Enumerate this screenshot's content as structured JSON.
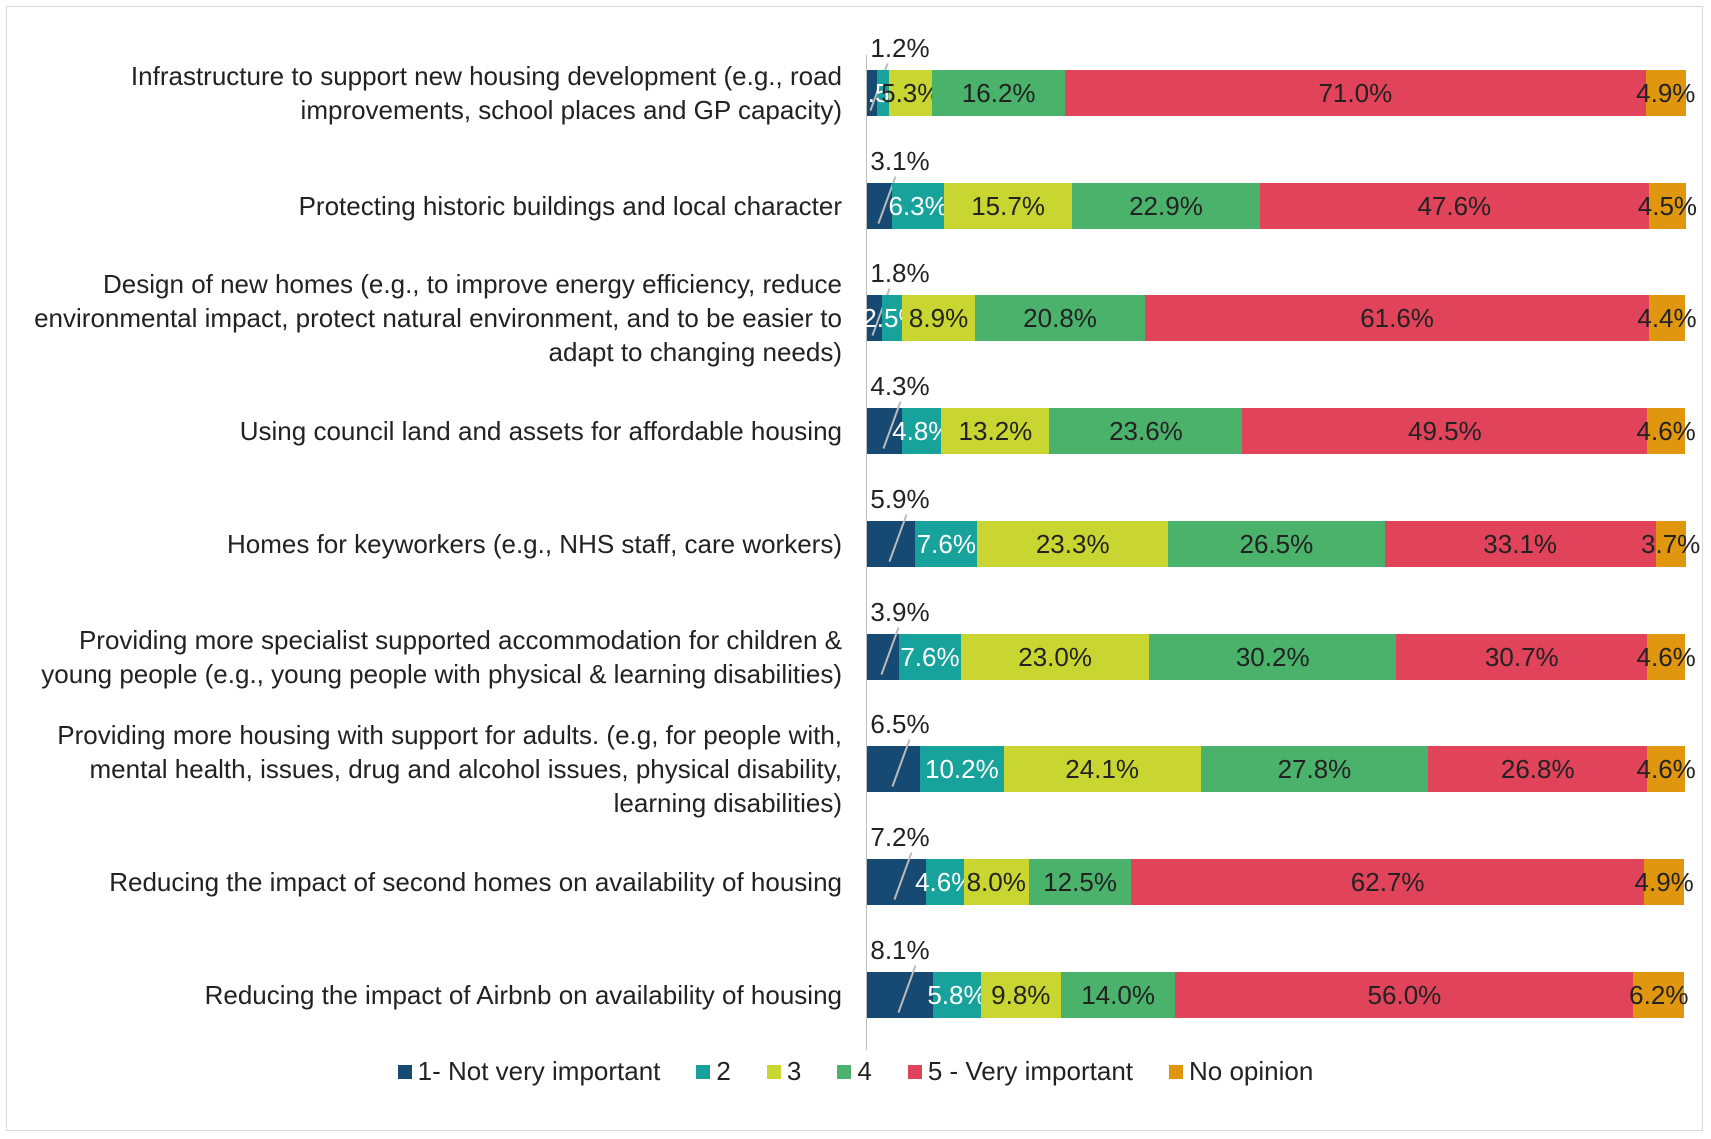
{
  "chart_data": {
    "type": "stacked-barh",
    "categories": [
      "Infrastructure to support new housing development (e.g., road improvements, school places and GP capacity)",
      "Protecting historic buildings and local character",
      "Design of new homes (e.g., to improve energy efficiency, reduce environmental impact, protect natural environment, and to be easier to adapt to changing needs)",
      "Using council land and assets for affordable housing",
      "Homes for keyworkers (e.g., NHS staff, care workers)",
      "Providing more specialist supported accommodation for children & young people (e.g., young people with physical & learning disabilities)",
      "Providing more housing with support for adults. (e.g, for people with, mental health, issues, drug and alcohol issues, physical disability, learning disabilities)",
      "Reducing the impact of second homes on availability of housing",
      "Reducing the impact of Airbnb on availability of housing"
    ],
    "xlim": [
      0,
      100
    ],
    "series": [
      {
        "name": "1- Not very important",
        "color": "#174a72",
        "values": [
          1.2,
          3.1,
          1.8,
          4.3,
          5.9,
          3.9,
          6.5,
          7.2,
          8.1
        ],
        "value_labels": [
          "1.2%",
          "3.1%",
          "1.8%",
          "4.3%",
          "5.9%",
          "3.9%",
          "6.5%",
          "7.2%",
          "8.1%"
        ]
      },
      {
        "name": "2",
        "color": "#17a29b",
        "values": [
          1.5,
          6.3,
          2.5,
          4.8,
          7.6,
          7.6,
          10.2,
          4.6,
          5.8
        ],
        "value_labels": [
          "1.5%",
          "6.3%",
          "2.5%",
          "4.8%",
          "7.6%",
          "7.6%",
          "10.2%",
          "4.6%",
          "5.8%"
        ]
      },
      {
        "name": "3",
        "color": "#c9d631",
        "values": [
          5.3,
          15.7,
          8.9,
          13.2,
          23.3,
          23.0,
          24.1,
          8.0,
          9.8
        ],
        "value_labels": [
          "5.3%",
          "15.7%",
          "8.9%",
          "13.2%",
          "23.3%",
          "23.0%",
          "24.1%",
          "8.0%",
          "9.8%"
        ]
      },
      {
        "name": "4",
        "color": "#4bb26b",
        "values": [
          16.2,
          22.9,
          20.8,
          23.6,
          26.5,
          30.2,
          27.8,
          12.5,
          14.0
        ],
        "value_labels": [
          "16.2%",
          "22.9%",
          "20.8%",
          "23.6%",
          "26.5%",
          "30.2%",
          "27.8%",
          "12.5%",
          "14.0%"
        ]
      },
      {
        "name": "5 - Very important",
        "color": "#e1435a",
        "values": [
          71.0,
          47.6,
          61.6,
          49.5,
          33.1,
          30.7,
          26.8,
          62.7,
          56.0
        ],
        "value_labels": [
          "71.0%",
          "47.6%",
          "61.6%",
          "49.5%",
          "33.1%",
          "30.7%",
          "26.8%",
          "62.7%",
          "56.0%"
        ]
      },
      {
        "name": "No opinion",
        "color": "#e0960f",
        "values": [
          4.9,
          4.5,
          4.4,
          4.6,
          3.7,
          4.6,
          4.6,
          4.9,
          6.2
        ],
        "value_labels": [
          "4.9%",
          "4.5%",
          "4.4%",
          "4.6%",
          "3.7%",
          "4.6%",
          "4.6%",
          "4.9%",
          "6.2%"
        ]
      }
    ]
  }
}
